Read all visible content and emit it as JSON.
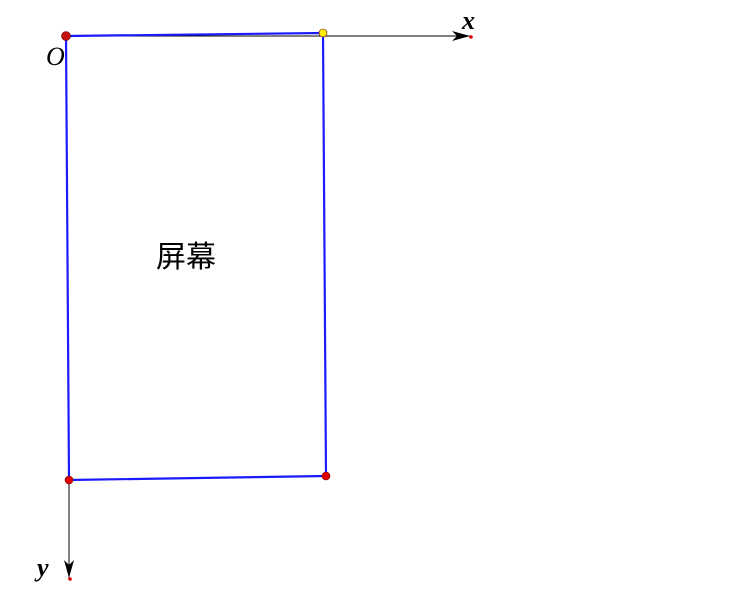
{
  "axes": {
    "x_label": "x",
    "y_label": "y",
    "origin_label": "O"
  },
  "screen": {
    "label": "屏幕"
  },
  "colors": {
    "rectangle": "#1a1aff",
    "axis": "#000000",
    "point_red": "#e00000",
    "point_yellow": "#ffee00"
  }
}
